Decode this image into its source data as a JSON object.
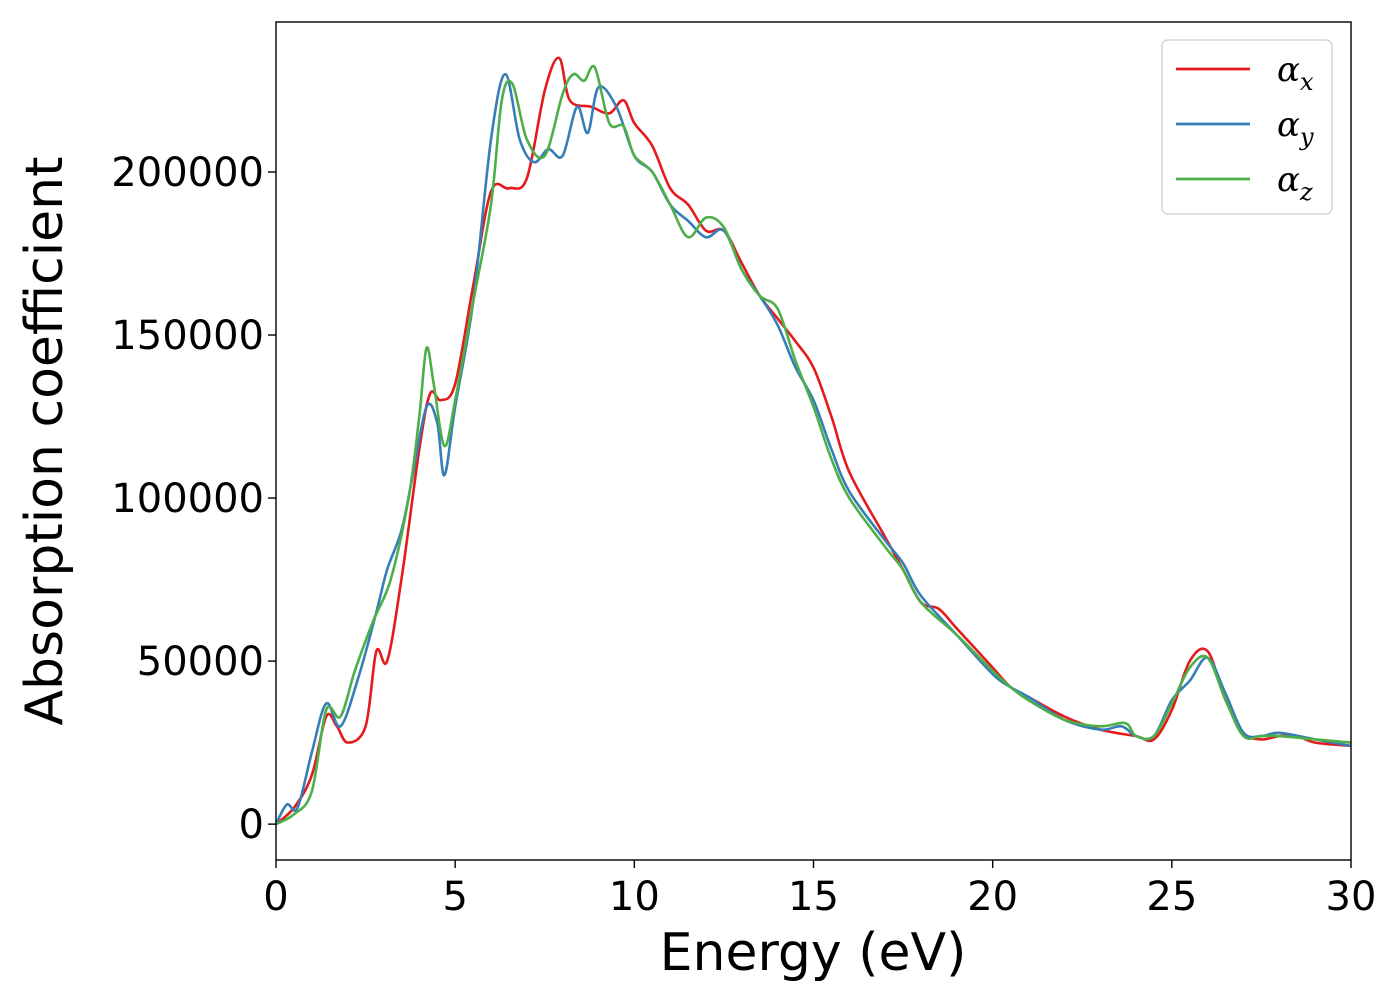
{
  "chart_data": {
    "type": "line",
    "title": "",
    "xlabel": "Energy (eV)",
    "ylabel": "Absorption coefficient",
    "xlim": [
      0,
      30
    ],
    "ylim": [
      -11000,
      246000
    ],
    "xticks": [
      0,
      5,
      10,
      15,
      20,
      25,
      30
    ],
    "xtick_labels": [
      "0",
      "5",
      "10",
      "15",
      "20",
      "25",
      "30"
    ],
    "yticks": [
      0,
      50000,
      100000,
      150000,
      200000
    ],
    "ytick_labels": [
      "0",
      "50000",
      "100000",
      "150000",
      "200000"
    ],
    "grid": false,
    "legend_position": "top-right",
    "series": [
      {
        "name": "αx",
        "base": "α",
        "sub": "x",
        "color": "#e41a1c",
        "x": [
          0,
          0.5,
          1,
          1.4,
          1.7,
          2,
          2.5,
          2.8,
          3.1,
          3.5,
          4,
          4.3,
          4.6,
          5,
          5.5,
          6,
          6.5,
          7,
          7.5,
          7.9,
          8.2,
          8.8,
          9.3,
          9.7,
          10,
          10.5,
          11,
          11.5,
          12,
          12.5,
          13,
          13.5,
          14,
          14.5,
          15,
          15.5,
          16,
          17,
          17.5,
          18,
          18.5,
          19,
          20,
          20.5,
          21,
          22,
          23,
          24,
          24.5,
          25,
          25.5,
          26,
          26.5,
          27,
          27.5,
          28,
          28.5,
          29,
          30
        ],
        "y": [
          0,
          5000,
          15000,
          33000,
          30000,
          25000,
          30000,
          53000,
          50000,
          75000,
          115000,
          132000,
          130000,
          135000,
          165000,
          194000,
          195000,
          198000,
          225000,
          235000,
          222000,
          220000,
          218000,
          222000,
          215000,
          208000,
          195000,
          190000,
          182000,
          182000,
          172000,
          162000,
          155000,
          148000,
          140000,
          125000,
          108000,
          88000,
          78000,
          68000,
          66000,
          60000,
          48000,
          42000,
          39000,
          33000,
          29000,
          27000,
          26000,
          35000,
          50000,
          53000,
          38000,
          28000,
          26000,
          27000,
          27000,
          25000,
          24000
        ]
      },
      {
        "name": "αy",
        "base": "α",
        "sub": "y",
        "color": "#377eb8",
        "x": [
          0,
          0.3,
          0.6,
          1,
          1.4,
          1.8,
          2.3,
          2.8,
          3.1,
          3.5,
          3.8,
          4.2,
          4.5,
          4.7,
          5,
          5.5,
          6,
          6.4,
          6.8,
          7.2,
          7.6,
          8,
          8.4,
          8.7,
          9,
          9.5,
          10,
          10.5,
          11,
          11.5,
          12,
          12.5,
          13,
          13.5,
          14,
          14.5,
          15,
          15.5,
          16,
          17,
          17.5,
          18,
          19,
          20,
          20.5,
          21,
          22,
          23,
          23.6,
          24,
          24.5,
          25,
          25.5,
          26,
          26.5,
          27,
          27.5,
          28,
          29,
          30
        ],
        "y": [
          0,
          6000,
          5000,
          22000,
          37000,
          30000,
          45000,
          65000,
          78000,
          90000,
          106000,
          128000,
          123000,
          107000,
          128000,
          160000,
          210000,
          230000,
          210000,
          203000,
          207000,
          205000,
          220000,
          212000,
          226000,
          220000,
          205000,
          200000,
          190000,
          185000,
          180000,
          182000,
          170000,
          162000,
          153000,
          140000,
          130000,
          115000,
          102000,
          87000,
          80000,
          70000,
          58000,
          46000,
          42000,
          39000,
          32000,
          29000,
          30000,
          27000,
          27000,
          38000,
          44000,
          51000,
          40000,
          28000,
          27000,
          28000,
          26000,
          24000
        ]
      },
      {
        "name": "αz",
        "base": "α",
        "sub": "z",
        "color": "#4daf4a",
        "x": [
          0,
          0.5,
          1,
          1.4,
          1.8,
          2.2,
          2.7,
          3.2,
          3.7,
          4,
          4.2,
          4.4,
          4.7,
          5,
          5.5,
          6,
          6.3,
          6.6,
          7,
          7.5,
          8,
          8.3,
          8.6,
          8.9,
          9.3,
          9.7,
          10,
          10.5,
          11,
          11.5,
          12,
          12.5,
          13,
          13.5,
          14,
          14.5,
          15,
          15.5,
          16,
          17,
          17.5,
          18,
          19,
          20,
          20.5,
          21,
          22,
          23,
          23.7,
          24,
          24.5,
          25,
          25.5,
          26,
          26.5,
          27,
          27.5,
          28,
          29,
          30
        ],
        "y": [
          0,
          3000,
          10000,
          35000,
          33000,
          47000,
          62000,
          75000,
          100000,
          125000,
          146000,
          135000,
          116000,
          130000,
          160000,
          190000,
          222000,
          227000,
          210000,
          205000,
          224000,
          230000,
          228000,
          232000,
          215000,
          214000,
          205000,
          200000,
          190000,
          180000,
          186000,
          183000,
          170000,
          162000,
          158000,
          142000,
          128000,
          112000,
          100000,
          85000,
          78000,
          68000,
          58000,
          47000,
          42000,
          38000,
          32000,
          30000,
          31000,
          27000,
          27000,
          37000,
          48000,
          51000,
          38000,
          27000,
          27000,
          27000,
          26000,
          25000
        ]
      }
    ]
  }
}
